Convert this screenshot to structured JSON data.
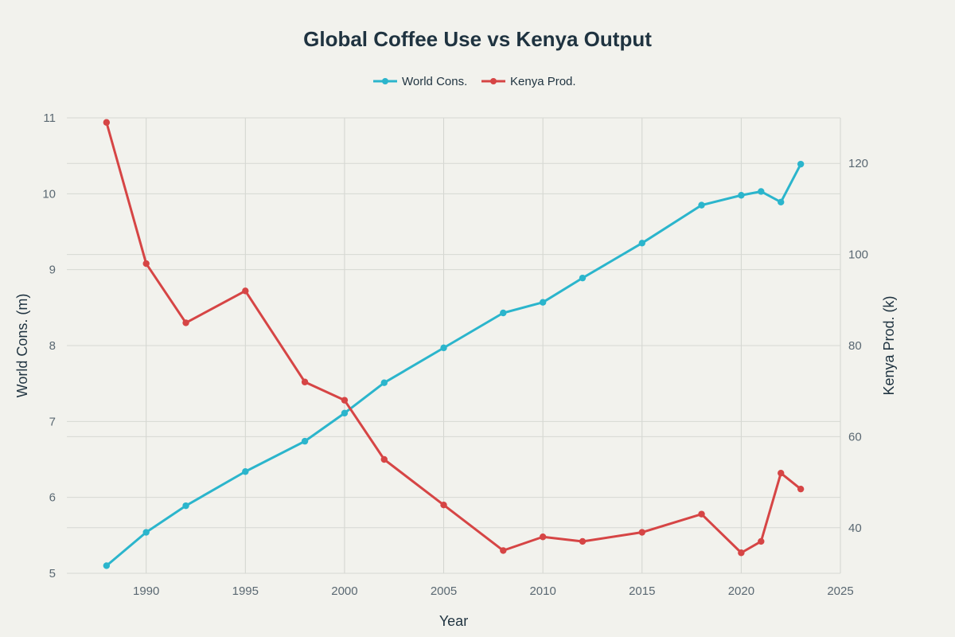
{
  "chart_data": {
    "type": "line",
    "title": "Global Coffee Use vs Kenya Output",
    "xlabel": "Year",
    "ylabel_left": "World Cons. (m)",
    "ylabel_right": "Kenya Prod. (k)",
    "xlim": [
      1986,
      2025
    ],
    "ylim_left": [
      5,
      11
    ],
    "ylim_right": [
      30,
      130
    ],
    "x_ticks": [
      1990,
      1995,
      2000,
      2005,
      2010,
      2015,
      2020,
      2025
    ],
    "y_left_ticks": [
      5,
      6,
      7,
      8,
      9,
      10,
      11
    ],
    "y_right_ticks": [
      40,
      60,
      80,
      100,
      120
    ],
    "grid": true,
    "legend_position": "top-center",
    "series": [
      {
        "name": "World Cons.",
        "axis": "left",
        "color": "#2bb5cc",
        "points": [
          [
            1988,
            5.1
          ],
          [
            1990,
            5.54
          ],
          [
            1992,
            5.89
          ],
          [
            1995,
            6.34
          ],
          [
            1998,
            6.74
          ],
          [
            2000,
            7.11
          ],
          [
            2002,
            7.51
          ],
          [
            2005,
            7.97
          ],
          [
            2008,
            8.43
          ],
          [
            2010,
            8.57
          ],
          [
            2012,
            8.89
          ],
          [
            2015,
            9.35
          ],
          [
            2018,
            9.85
          ],
          [
            2020,
            9.98
          ],
          [
            2021,
            10.03
          ],
          [
            2022,
            9.89
          ],
          [
            2023,
            10.39
          ]
        ]
      },
      {
        "name": "Kenya Prod.",
        "axis": "right",
        "color": "#d64545",
        "points": [
          [
            1988,
            129
          ],
          [
            1990,
            98
          ],
          [
            1992,
            85
          ],
          [
            1995,
            92
          ],
          [
            1998,
            72
          ],
          [
            2000,
            68
          ],
          [
            2002,
            55
          ],
          [
            2005,
            45
          ],
          [
            2008,
            35
          ],
          [
            2010,
            38
          ],
          [
            2012,
            37
          ],
          [
            2015,
            39
          ],
          [
            2018,
            43
          ],
          [
            2020,
            34.5
          ],
          [
            2021,
            37
          ],
          [
            2022,
            52
          ],
          [
            2023,
            48.5
          ]
        ]
      }
    ]
  }
}
